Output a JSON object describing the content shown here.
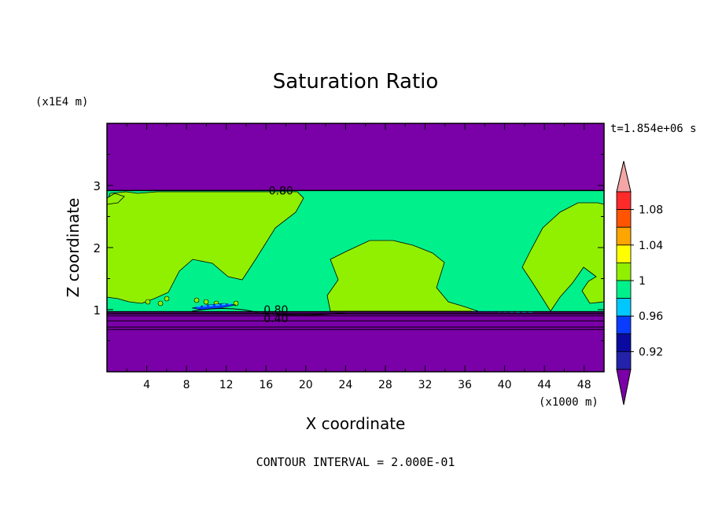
{
  "chart_data": {
    "type": "heatmap",
    "title": "Saturation Ratio",
    "xlabel": "X coordinate",
    "ylabel": "Z coordinate",
    "x_unit": "(x1000 m)",
    "y_unit": "(x1E4 m)",
    "time_label": "t=1.854e+06 s",
    "footer": "CONTOUR INTERVAL = 2.000E-01",
    "xlim": [
      0,
      50
    ],
    "ylim": [
      0,
      4
    ],
    "x_ticks": [
      4,
      8,
      12,
      16,
      20,
      24,
      28,
      32,
      36,
      40,
      44,
      48
    ],
    "y_ticks": [
      1,
      2,
      3
    ],
    "colorbar": {
      "ticks": [
        "0.92",
        "0.96",
        "1",
        "1.04",
        "1.08"
      ],
      "levels": [
        {
          "color": "#7a00a8"
        },
        {
          "color": "#2222aa"
        },
        {
          "color": "#0a0aa0"
        },
        {
          "color": "#0a3cff"
        },
        {
          "color": "#00c8ff"
        },
        {
          "color": "#00f08c"
        },
        {
          "color": "#90f000"
        },
        {
          "color": "#ffff00"
        },
        {
          "color": "#ffa500"
        },
        {
          "color": "#ff5500"
        },
        {
          "color": "#ff2a2a"
        },
        {
          "color": "#f4a6a6"
        }
      ]
    },
    "contour_labels": [
      {
        "text": "0.80",
        "x": 17.5,
        "y": 2.92
      },
      {
        "text": "0.80",
        "x": 17.0,
        "y": 1.0
      },
      {
        "text": "0.40",
        "x": 17.0,
        "y": 0.86
      }
    ],
    "colors": {
      "purple": "#7a00a8",
      "green": "#00f08c",
      "lime": "#90f000",
      "blue": "#0a3cff",
      "cyan": "#00c8ff"
    }
  }
}
